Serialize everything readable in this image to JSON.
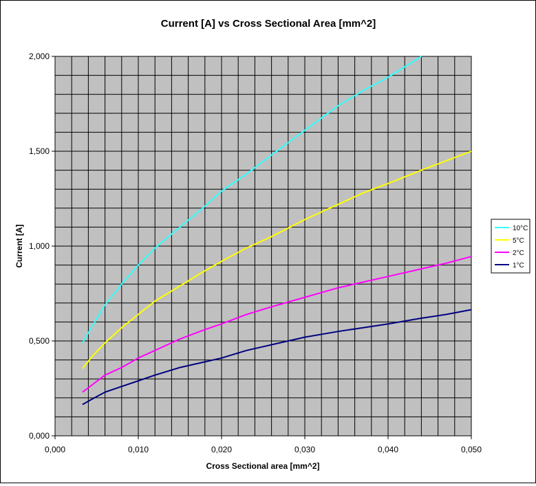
{
  "chart_data": {
    "type": "line",
    "title": "Current [A] vs Cross Sectional Area [mm^2]",
    "xlabel": "Cross Sectional area [mm^2]",
    "ylabel": "Current [A]",
    "xlim": [
      0,
      0.05
    ],
    "ylim": [
      0,
      2
    ],
    "x_tick_labels": [
      "0,000",
      "0,010",
      "0,020",
      "0,030",
      "0,040",
      "0,050"
    ],
    "y_tick_labels": [
      "0,000",
      "0,500",
      "1,000",
      "1,500",
      "2,000"
    ],
    "grid": true,
    "plot_background": "#c0c0c0",
    "legend_position": "right",
    "series": [
      {
        "name": "10°C",
        "color": "#33ffff",
        "x": [
          0.0033,
          0.0045,
          0.006,
          0.008,
          0.01,
          0.012,
          0.015,
          0.018,
          0.02,
          0.023,
          0.026,
          0.03,
          0.034,
          0.037,
          0.04,
          0.044
        ],
        "y": [
          0.49,
          0.58,
          0.69,
          0.8,
          0.9,
          0.99,
          1.1,
          1.21,
          1.29,
          1.38,
          1.48,
          1.61,
          1.74,
          1.82,
          1.89,
          2.0
        ]
      },
      {
        "name": "5°C",
        "color": "#ffff00",
        "x": [
          0.0033,
          0.0045,
          0.006,
          0.008,
          0.01,
          0.012,
          0.015,
          0.018,
          0.02,
          0.023,
          0.026,
          0.03,
          0.034,
          0.037,
          0.04,
          0.044,
          0.047,
          0.05
        ],
        "y": [
          0.355,
          0.42,
          0.49,
          0.57,
          0.64,
          0.71,
          0.79,
          0.87,
          0.92,
          0.99,
          1.05,
          1.14,
          1.22,
          1.28,
          1.33,
          1.4,
          1.45,
          1.5
        ]
      },
      {
        "name": "2°C",
        "color": "#ff00ff",
        "x": [
          0.0033,
          0.0045,
          0.006,
          0.008,
          0.01,
          0.012,
          0.015,
          0.018,
          0.02,
          0.023,
          0.026,
          0.03,
          0.034,
          0.037,
          0.04,
          0.044,
          0.047,
          0.05
        ],
        "y": [
          0.23,
          0.27,
          0.32,
          0.36,
          0.41,
          0.45,
          0.51,
          0.56,
          0.59,
          0.64,
          0.68,
          0.73,
          0.78,
          0.81,
          0.84,
          0.88,
          0.91,
          0.945
        ]
      },
      {
        "name": "1°C",
        "color": "#000080",
        "x": [
          0.0033,
          0.0045,
          0.006,
          0.008,
          0.01,
          0.012,
          0.015,
          0.018,
          0.02,
          0.023,
          0.026,
          0.03,
          0.034,
          0.037,
          0.04,
          0.044,
          0.047,
          0.05
        ],
        "y": [
          0.165,
          0.195,
          0.23,
          0.26,
          0.29,
          0.32,
          0.36,
          0.39,
          0.41,
          0.45,
          0.48,
          0.52,
          0.55,
          0.57,
          0.59,
          0.62,
          0.64,
          0.665
        ]
      }
    ]
  }
}
